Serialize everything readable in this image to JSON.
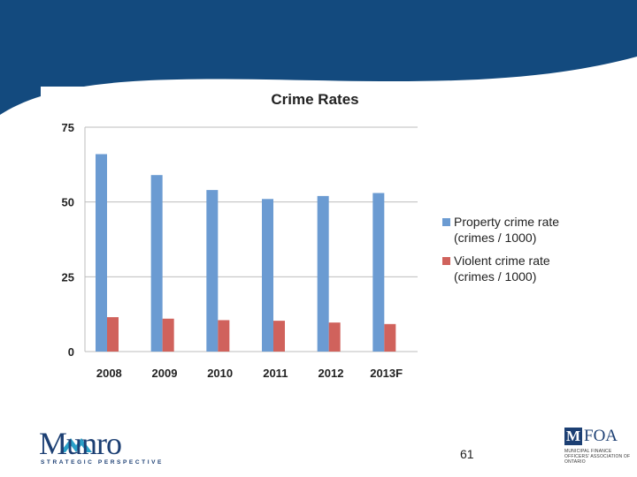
{
  "chart_data": {
    "type": "bar",
    "title": "Crime Rates",
    "categories": [
      "2008",
      "2009",
      "2010",
      "2011",
      "2012",
      "2013F"
    ],
    "series": [
      {
        "name": "Property crime rate (crimes / 1000)",
        "color": "#6b9bd2",
        "values": [
          66,
          59,
          54,
          51,
          52,
          53
        ]
      },
      {
        "name": "Violent crime rate (crimes / 1000)",
        "color": "#d0625c",
        "values": [
          11.5,
          11,
          10.5,
          10.3,
          9.7,
          9.2
        ]
      }
    ],
    "ylim": [
      0,
      75
    ],
    "yticks": [
      "0",
      "25",
      "50",
      "75"
    ],
    "grid": true,
    "legend_position": "right",
    "legend_lines": [
      [
        "Property crime rate",
        "(crimes / 1000)"
      ],
      [
        "Violent crime rate",
        "(crimes / 1000)"
      ]
    ]
  },
  "footer": {
    "munro_name": "Munro",
    "munro_tagline": "STRATEGIC PERSPECTIVE",
    "page_number": "61",
    "mfoa_letter": "M",
    "mfoa_name": "FOA",
    "mfoa_subtitle": "MUNICIPAL FINANCE OFFICERS' ASSOCIATION OF ONTARIO"
  },
  "colors": {
    "header": "#134a7e",
    "brand": "#1c3f73"
  }
}
